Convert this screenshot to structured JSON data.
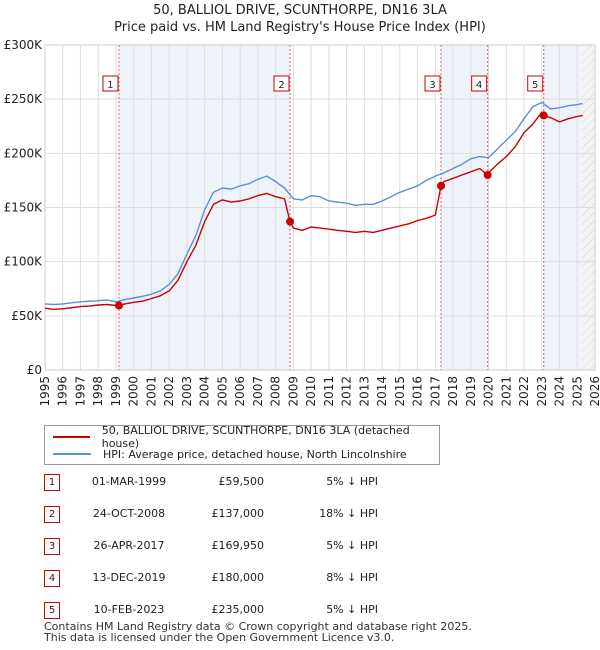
{
  "chart_data": {
    "type": "line",
    "title": "50, BALLIOL DRIVE, SCUNTHORPE, DN16 3LA",
    "subtitle": "Price paid vs. HM Land Registry's House Price Index (HPI)",
    "xlim": [
      1995,
      2026
    ],
    "ylim": [
      0,
      300000
    ],
    "y_ticks": [
      {
        "value": 0,
        "label": "£0"
      },
      {
        "value": 50000,
        "label": "£50K"
      },
      {
        "value": 100000,
        "label": "£100K"
      },
      {
        "value": 150000,
        "label": "£150K"
      },
      {
        "value": 200000,
        "label": "£200K"
      },
      {
        "value": 250000,
        "label": "£250K"
      },
      {
        "value": 300000,
        "label": "£300K"
      }
    ],
    "x_ticks": [
      "1995",
      "1996",
      "1997",
      "1998",
      "1999",
      "2000",
      "2001",
      "2002",
      "2003",
      "2004",
      "2005",
      "2006",
      "2007",
      "2008",
      "2009",
      "2010",
      "2011",
      "2012",
      "2013",
      "2014",
      "2015",
      "2016",
      "2017",
      "2018",
      "2019",
      "2020",
      "2021",
      "2022",
      "2023",
      "2024",
      "2025",
      "2026"
    ],
    "forecast_start": 2025.25,
    "series": [
      {
        "name": "50, BALLIOL DRIVE, SCUNTHORPE, DN16 3LA (detached house)",
        "color": "#cc0000",
        "x": [
          1995.0,
          1995.5,
          1996.0,
          1996.5,
          1997.0,
          1997.5,
          1998.0,
          1998.5,
          1999.0,
          1999.17,
          1999.5,
          2000.0,
          2000.5,
          2001.0,
          2001.5,
          2002.0,
          2002.5,
          2003.0,
          2003.5,
          2004.0,
          2004.5,
          2005.0,
          2005.5,
          2006.0,
          2006.5,
          2007.0,
          2007.5,
          2008.0,
          2008.5,
          2008.81,
          2009.0,
          2009.5,
          2010.0,
          2010.5,
          2011.0,
          2011.5,
          2012.0,
          2012.5,
          2013.0,
          2013.5,
          2014.0,
          2014.5,
          2015.0,
          2015.5,
          2016.0,
          2016.5,
          2017.0,
          2017.32,
          2017.5,
          2018.0,
          2018.5,
          2019.0,
          2019.5,
          2019.95,
          2020.0,
          2020.5,
          2021.0,
          2021.5,
          2022.0,
          2022.5,
          2023.0,
          2023.11,
          2023.5,
          2024.0,
          2024.5,
          2025.0,
          2025.3
        ],
        "values": [
          57000,
          56000,
          56500,
          57500,
          58500,
          59000,
          60000,
          60500,
          59500,
          59500,
          61000,
          62500,
          63500,
          66000,
          68500,
          73000,
          83000,
          100000,
          115000,
          137000,
          153000,
          157000,
          155000,
          156000,
          158000,
          161000,
          163000,
          160000,
          158000,
          137000,
          131000,
          129000,
          132000,
          131000,
          130000,
          129000,
          128000,
          127000,
          128000,
          127000,
          129000,
          131000,
          133000,
          135000,
          138000,
          140000,
          143000,
          169950,
          174000,
          177000,
          180000,
          183000,
          186000,
          180000,
          182000,
          190000,
          197000,
          206000,
          219000,
          227000,
          238000,
          235000,
          233000,
          229000,
          232000,
          234000,
          235000
        ]
      },
      {
        "name": "HPI: Average price, detached house, North Lincolnshire",
        "color": "#5b8fd6",
        "x": [
          1995.0,
          1995.5,
          1996.0,
          1996.5,
          1997.0,
          1997.5,
          1998.0,
          1998.5,
          1999.0,
          1999.5,
          2000.0,
          2000.5,
          2001.0,
          2001.5,
          2002.0,
          2002.5,
          2003.0,
          2003.5,
          2004.0,
          2004.5,
          2005.0,
          2005.5,
          2006.0,
          2006.5,
          2007.0,
          2007.5,
          2008.0,
          2008.5,
          2009.0,
          2009.5,
          2010.0,
          2010.5,
          2011.0,
          2011.5,
          2012.0,
          2012.5,
          2013.0,
          2013.5,
          2014.0,
          2014.5,
          2015.0,
          2015.5,
          2016.0,
          2016.5,
          2017.0,
          2017.5,
          2018.0,
          2018.5,
          2019.0,
          2019.5,
          2020.0,
          2020.5,
          2021.0,
          2021.5,
          2022.0,
          2022.5,
          2023.0,
          2023.5,
          2024.0,
          2024.5,
          2025.0,
          2025.3
        ],
        "values": [
          61000,
          60500,
          61000,
          62000,
          63000,
          63500,
          64000,
          64500,
          63000,
          65000,
          66500,
          68000,
          70000,
          73000,
          79000,
          89000,
          107000,
          124000,
          148000,
          164000,
          168000,
          167000,
          170000,
          172000,
          176000,
          179000,
          174000,
          168000,
          158000,
          157000,
          161000,
          160000,
          156000,
          155000,
          154000,
          152000,
          153000,
          153000,
          156000,
          160000,
          164000,
          167000,
          170000,
          175000,
          179000,
          182000,
          186000,
          190000,
          195000,
          197000,
          196000,
          204000,
          212000,
          220000,
          232000,
          243000,
          247000,
          241000,
          242000,
          244000,
          245000,
          246000
        ]
      }
    ],
    "sales": [
      {
        "num": "1",
        "x": 1999.17,
        "value": 59500
      },
      {
        "num": "2",
        "x": 2008.81,
        "value": 137000
      },
      {
        "num": "3",
        "x": 2017.32,
        "value": 169950
      },
      {
        "num": "4",
        "x": 2019.95,
        "value": 180000
      },
      {
        "num": "5",
        "x": 2023.11,
        "value": 235000
      }
    ]
  },
  "legend": {
    "property_label": "50, BALLIOL DRIVE, SCUNTHORPE, DN16 3LA (detached house)",
    "hpi_label": "HPI: Average price, detached house, North Lincolnshire",
    "property_color": "#cc0000",
    "hpi_color": "#5b8fd6"
  },
  "sales_table": [
    {
      "num": "1",
      "date": "01-MAR-1999",
      "price": "£59,500",
      "hpi": "5% ↓ HPI"
    },
    {
      "num": "2",
      "date": "24-OCT-2008",
      "price": "£137,000",
      "hpi": "18% ↓ HPI"
    },
    {
      "num": "3",
      "date": "26-APR-2017",
      "price": "£169,950",
      "hpi": "5% ↓ HPI"
    },
    {
      "num": "4",
      "date": "13-DEC-2019",
      "price": "£180,000",
      "hpi": "8% ↓ HPI"
    },
    {
      "num": "5",
      "date": "10-FEB-2023",
      "price": "£235,000",
      "hpi": "5% ↓ HPI"
    }
  ],
  "footer": {
    "line1": "Contains HM Land Registry data © Crown copyright and database right 2025.",
    "line2": "This data is licensed under the Open Government Licence v3.0."
  }
}
